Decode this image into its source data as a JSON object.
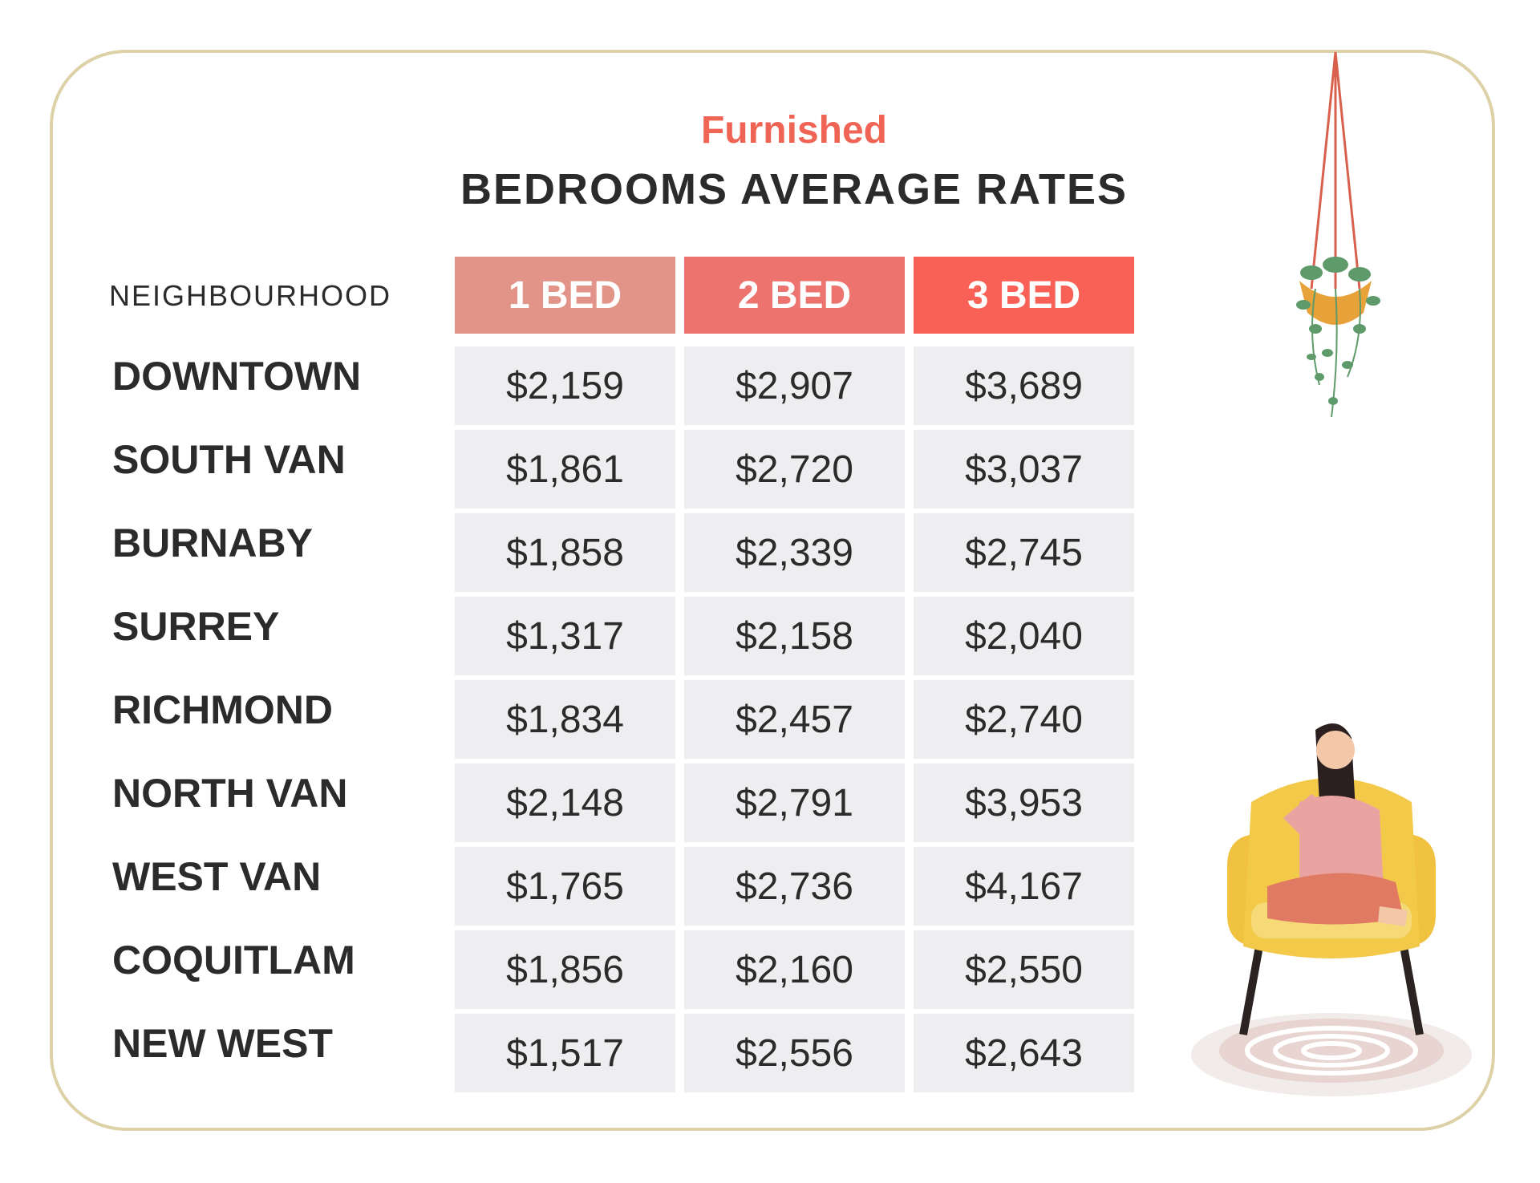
{
  "chart_data": {
    "type": "table",
    "subtitle": "Furnished",
    "title": "BEDROOMS AVERAGE RATES",
    "row_header": "NEIGHBOURHOOD",
    "columns": [
      {
        "label": "1 BED",
        "color": "#e29488"
      },
      {
        "label": "2 BED",
        "color": "#ec736e"
      },
      {
        "label": "3 BED",
        "color": "#f96056"
      }
    ],
    "rows": [
      {
        "label": "DOWNTOWN",
        "values": [
          "$2,159",
          "$2,907",
          "$3,689"
        ]
      },
      {
        "label": "SOUTH VAN",
        "values": [
          "$1,861",
          "$2,720",
          "$3,037"
        ]
      },
      {
        "label": "BURNABY",
        "values": [
          "$1,858",
          "$2,339",
          "$2,745"
        ]
      },
      {
        "label": "SURREY",
        "values": [
          "$1,317",
          "$2,158",
          "$2,040"
        ]
      },
      {
        "label": "RICHMOND",
        "values": [
          "$1,834",
          "$2,457",
          "$2,740"
        ]
      },
      {
        "label": "NORTH VAN",
        "values": [
          "$2,148",
          "$2,791",
          "$3,953"
        ]
      },
      {
        "label": "WEST VAN",
        "values": [
          "$1,765",
          "$2,736",
          "$4,167"
        ]
      },
      {
        "label": "COQUITLAM",
        "values": [
          "$1,856",
          "$2,160",
          "$2,550"
        ]
      },
      {
        "label": "NEW WEST",
        "values": [
          "$1,517",
          "$2,556",
          "$2,643"
        ]
      }
    ]
  },
  "illustrations": {
    "plant": "hanging-plant-icon",
    "person": "woman-in-armchair-icon"
  },
  "colors": {
    "frame": "#ddd1a8",
    "accent": "#f06456",
    "text": "#2b2b2b",
    "cell_bg": "#eeeef0"
  }
}
